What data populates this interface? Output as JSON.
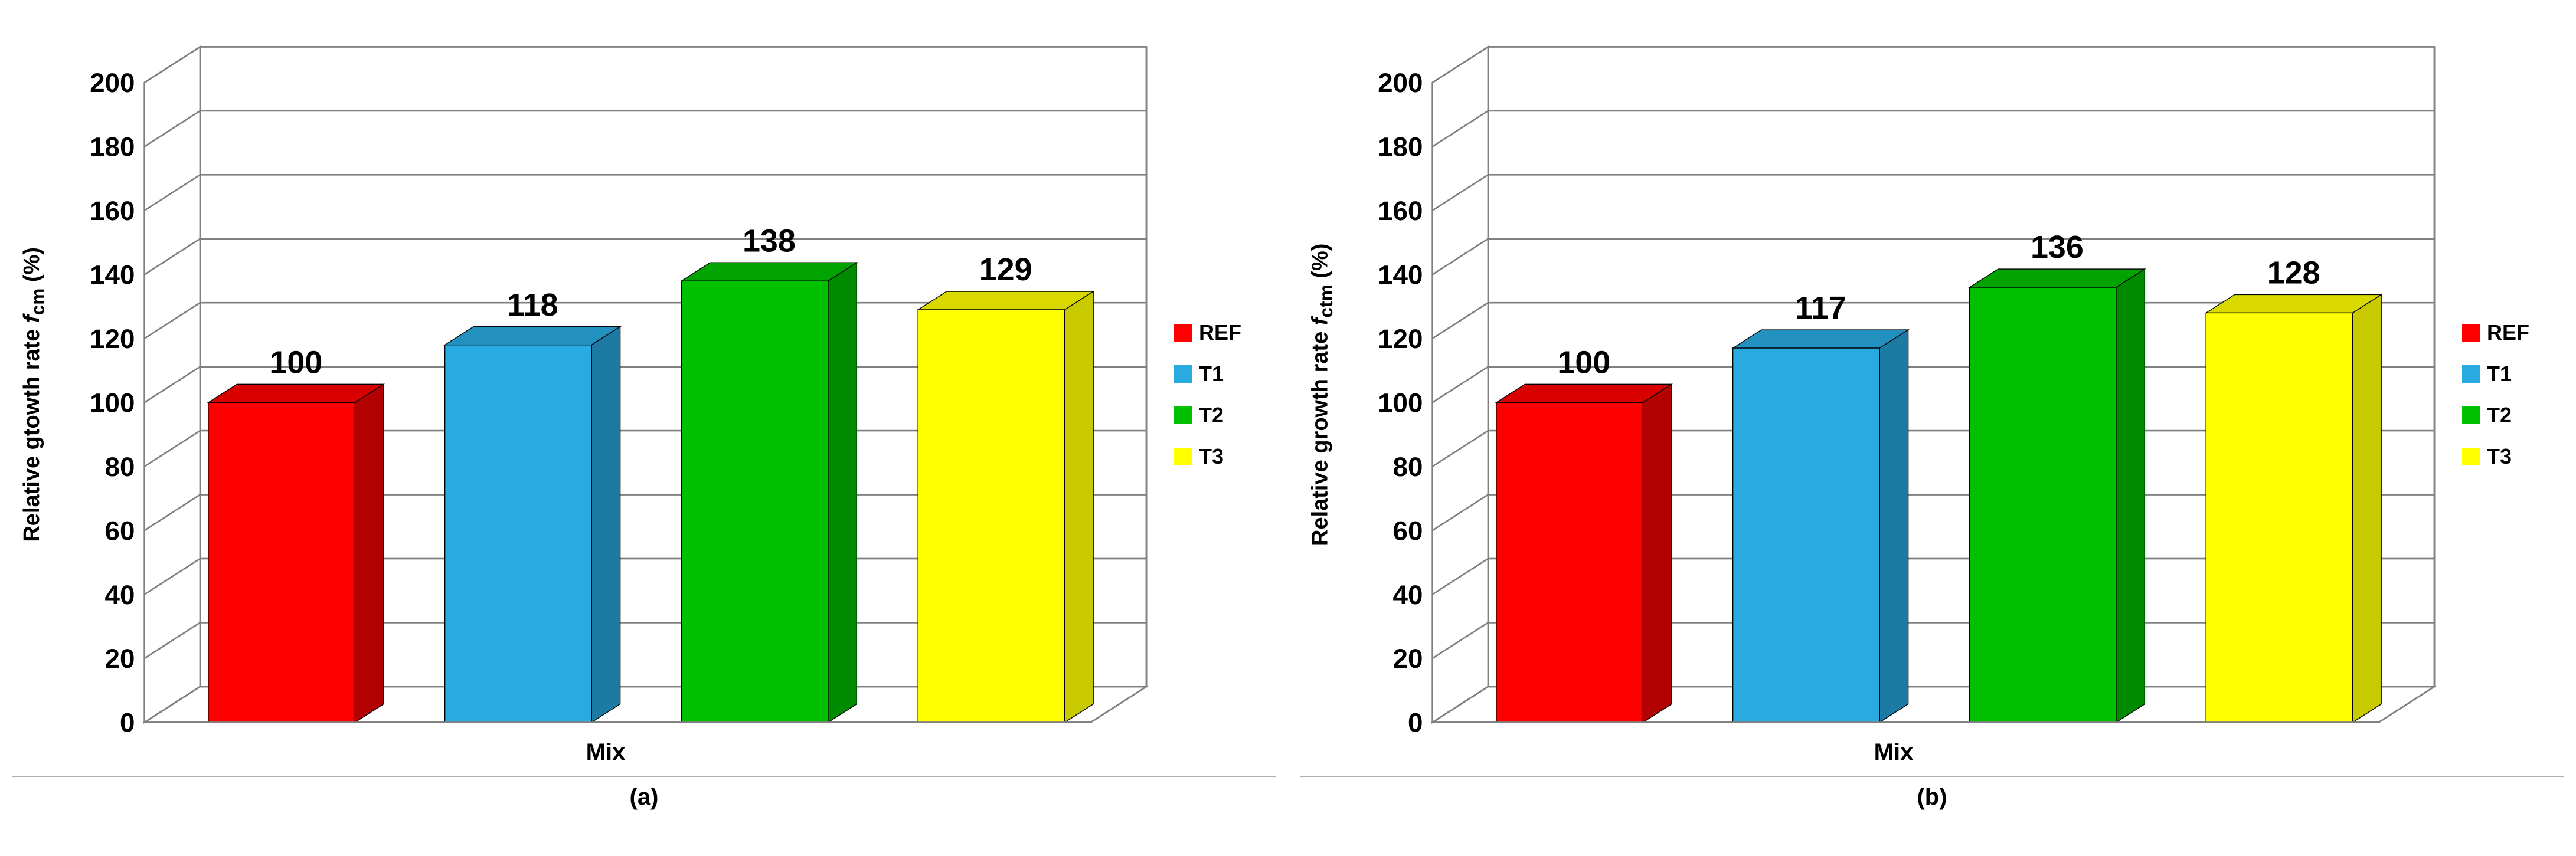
{
  "global": {
    "ylim": [
      0,
      200
    ],
    "ytick_step": 20,
    "xlabel": "Mix",
    "grid_color": "#808080",
    "floor_color": "#ffffff",
    "wall_color": "#ffffff",
    "panel_border": "#b0b0b0",
    "tick_font_size": 34,
    "label_font_size": 40,
    "bar_label_font_size": 40,
    "legend_font_size": 36,
    "depth_dx": 70,
    "depth_dy": -45,
    "bar_depth_dx": 36,
    "bar_depth_dy": -23
  },
  "series": [
    {
      "key": "REF",
      "color": "#ff0000",
      "shade": "#b30000"
    },
    {
      "key": "T1",
      "color": "#29abe2",
      "shade": "#1c7aa3"
    },
    {
      "key": "T2",
      "color": "#00c000",
      "shade": "#008a00"
    },
    {
      "key": "T3",
      "color": "#ffff00",
      "shade": "#c9c900"
    }
  ],
  "charts": [
    {
      "id": "chart-a",
      "subfig": "(a)",
      "ylabel_parts": {
        "pre": "Relative gtowth rate ",
        "ital": "f",
        "sub": "cm",
        "post": " (%)"
      },
      "values": [
        100,
        118,
        138,
        129
      ]
    },
    {
      "id": "chart-b",
      "subfig": "(b)",
      "ylabel_parts": {
        "pre": "Relative growth rate ",
        "ital": "f",
        "sub": "ctm",
        "post": " (%)"
      },
      "values": [
        100,
        117,
        136,
        128
      ]
    }
  ]
}
